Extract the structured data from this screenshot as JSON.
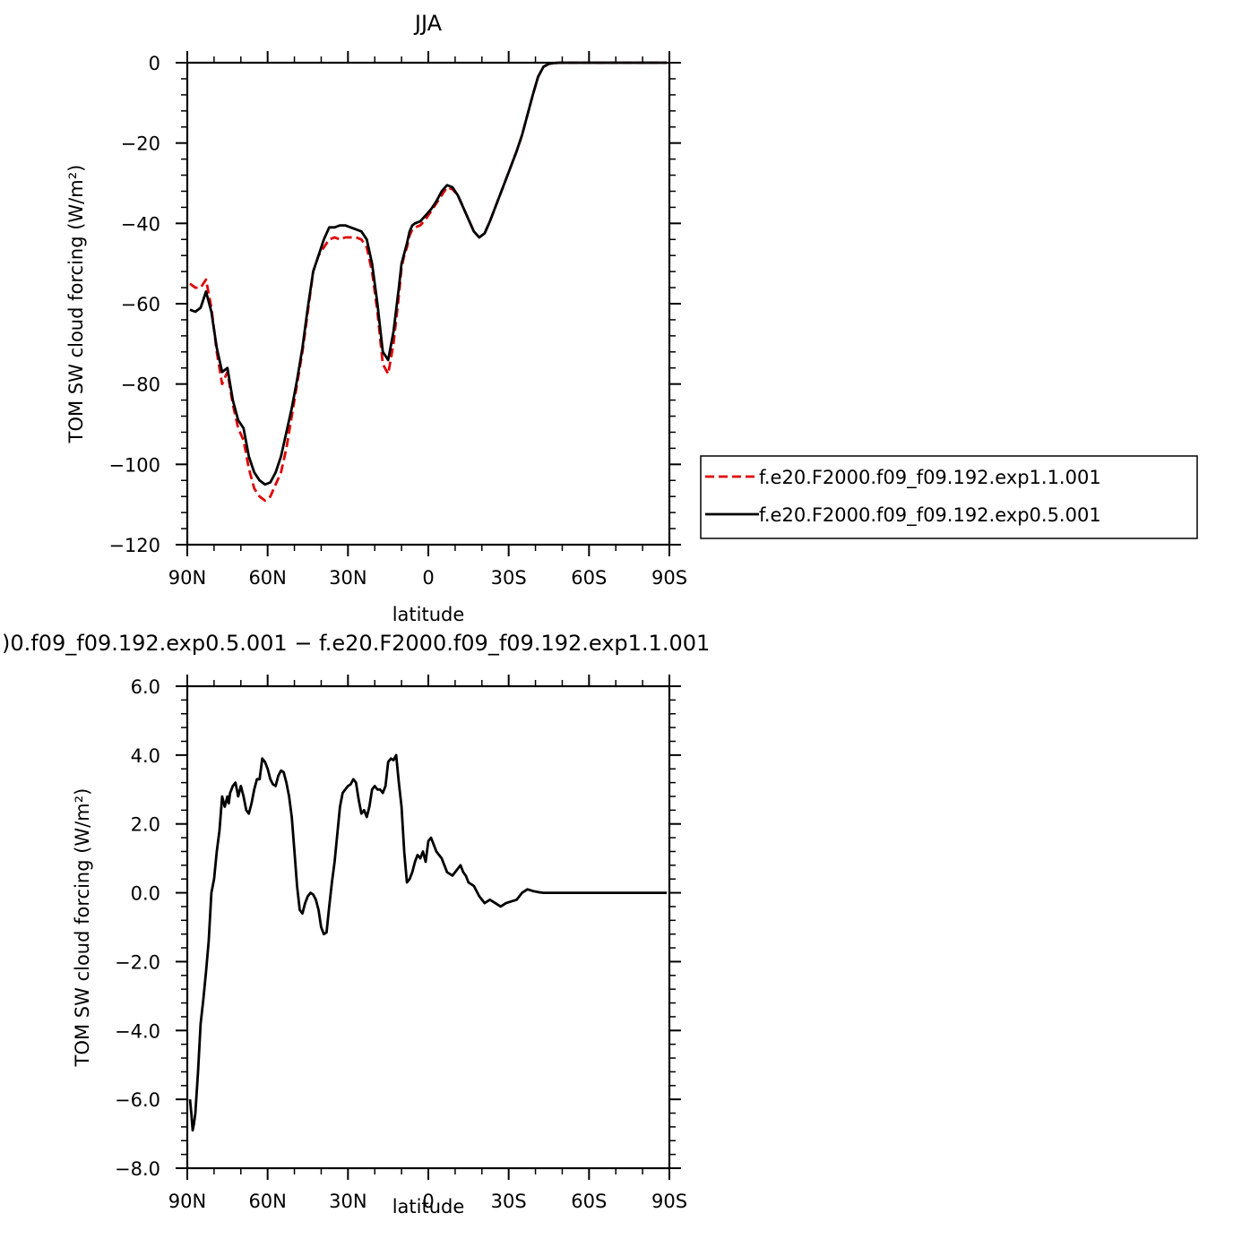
{
  "chart_data": [
    {
      "type": "line",
      "title": "JJA",
      "xlabel": "latitude",
      "ylabel": "TOM SW cloud forcing (W/m²)",
      "xlim": [
        90,
        -90
      ],
      "ylim": [
        -120,
        0
      ],
      "x_ticks": [
        90,
        60,
        30,
        0,
        -30,
        -60,
        -90
      ],
      "x_tick_labels": [
        "90N",
        "60N",
        "30N",
        "0",
        "30S",
        "60S",
        "90S"
      ],
      "y_ticks": [
        0,
        -20,
        -40,
        -60,
        -80,
        -100,
        -120
      ],
      "y_tick_labels": [
        "0",
        "−20",
        "−40",
        "−60",
        "−80",
        "−100",
        "−120"
      ],
      "legend_position": "right",
      "series": [
        {
          "name": "f.e20.F2000.f09_f09.192.exp1.1.001",
          "color": "#e00000",
          "dash": "dashed",
          "x": [
            89,
            87,
            85,
            83,
            81,
            79,
            77,
            75,
            74,
            73,
            71,
            69,
            67,
            65,
            63,
            61,
            59,
            57,
            55,
            53,
            51,
            49,
            47,
            45,
            43,
            41,
            39,
            37,
            35,
            33,
            31,
            29,
            27,
            25,
            23,
            21,
            19,
            17,
            15,
            13,
            11,
            10,
            9,
            8,
            7,
            6,
            5,
            3,
            1,
            -1,
            -3,
            -5,
            -7,
            -9,
            -11,
            -13,
            -15,
            -17,
            -19,
            -21,
            -23,
            -25,
            -27,
            -29,
            -31,
            -33,
            -35,
            -37,
            -39,
            -41,
            -43,
            -45,
            -47,
            -49,
            -51,
            -53,
            -55,
            -57,
            -59,
            -61,
            -63,
            -65,
            -67,
            -69,
            -71,
            -73,
            -75,
            -77,
            -79,
            -81,
            -83,
            -85,
            -87,
            -89
          ],
          "y": [
            -55,
            -56,
            -56,
            -54,
            -61,
            -72,
            -80,
            -77,
            -81,
            -85,
            -91,
            -94,
            -101,
            -106,
            -108,
            -109,
            -108,
            -105,
            -102,
            -96,
            -88,
            -80,
            -72,
            -62,
            -52,
            -48,
            -46,
            -44,
            -43.5,
            -44,
            -43.5,
            -43.5,
            -43.5,
            -44,
            -46,
            -52,
            -62,
            -75,
            -77.5,
            -70,
            -58,
            -51,
            -48,
            -46,
            -43,
            -41.5,
            -41,
            -40.5,
            -39,
            -37,
            -35,
            -33,
            -31,
            -31.5,
            -33,
            -36,
            -39,
            -42,
            -43.5,
            -42.5,
            -39.5,
            -36,
            -32.5,
            -29,
            -25.5,
            -22,
            -18,
            -13,
            -8,
            -3.5,
            -1,
            -0.3,
            -0.1,
            0,
            0,
            0,
            0,
            0,
            0,
            0,
            0,
            0,
            0,
            0,
            0,
            0,
            0,
            0,
            0,
            0,
            0,
            0,
            0,
            0
          ]
        },
        {
          "name": "f.e20.F2000.f09_f09.192.exp0.5.001",
          "color": "#000000",
          "dash": "solid",
          "x": [
            89,
            87,
            85,
            83,
            81,
            79,
            77,
            75,
            74,
            73,
            71,
            69,
            67,
            65,
            63,
            61,
            59,
            57,
            55,
            53,
            51,
            49,
            47,
            45,
            43,
            41,
            39,
            37,
            35,
            33,
            31,
            29,
            27,
            25,
            23,
            21,
            19,
            17,
            15,
            13,
            11,
            10,
            9,
            8,
            7,
            6,
            5,
            3,
            1,
            -1,
            -3,
            -5,
            -7,
            -9,
            -11,
            -13,
            -15,
            -17,
            -19,
            -21,
            -23,
            -25,
            -27,
            -29,
            -31,
            -33,
            -35,
            -37,
            -39,
            -41,
            -43,
            -45,
            -47,
            -49,
            -51,
            -53,
            -55,
            -57,
            -59,
            -61,
            -63,
            -65,
            -67,
            -69,
            -71,
            -73,
            -75,
            -77,
            -79,
            -81,
            -83,
            -85,
            -87,
            -89
          ],
          "y": [
            -61.5,
            -62,
            -61,
            -57,
            -62,
            -71,
            -77,
            -76,
            -80,
            -84,
            -89,
            -91,
            -98,
            -102,
            -104,
            -105,
            -104.5,
            -102,
            -98,
            -92,
            -86,
            -79,
            -71,
            -61,
            -52,
            -48,
            -44,
            -41,
            -41,
            -40.5,
            -40.5,
            -41,
            -41.5,
            -42,
            -44,
            -50,
            -60,
            -72,
            -74,
            -67,
            -56,
            -50,
            -47.5,
            -45,
            -42,
            -40.5,
            -40,
            -39.5,
            -38,
            -36.5,
            -34.5,
            -32,
            -30.5,
            -31,
            -33,
            -36,
            -39,
            -42,
            -43.5,
            -42.5,
            -39.5,
            -36,
            -32.5,
            -29,
            -25.5,
            -22,
            -18,
            -13,
            -8,
            -3.5,
            -1,
            -0.3,
            -0.1,
            0,
            0,
            0,
            0,
            0,
            0,
            0,
            0,
            0,
            0,
            0,
            0,
            0,
            0,
            0,
            0,
            0,
            0,
            0,
            0,
            0
          ]
        }
      ]
    },
    {
      "type": "line",
      "title": ")0.f09_f09.192.exp0.5.001 − f.e20.F2000.f09_f09.192.exp1.1.001",
      "xlabel": "latitude",
      "ylabel": "TOM SW cloud forcing (W/m²)",
      "xlim": [
        90,
        -90
      ],
      "ylim": [
        -8,
        6
      ],
      "x_ticks": [
        90,
        60,
        30,
        0,
        -30,
        -60,
        -90
      ],
      "x_tick_labels": [
        "90N",
        "60N",
        "30N",
        "0",
        "30S",
        "60S",
        "90S"
      ],
      "y_ticks": [
        6,
        4,
        2,
        0,
        -2,
        -4,
        -6,
        -8
      ],
      "y_tick_labels": [
        "6.0",
        "4.0",
        "2.0",
        "0.0",
        "−2.0",
        "−4.0",
        "−6.0",
        "−8.0"
      ],
      "series": [
        {
          "name": "",
          "color": "#000000",
          "dash": "solid",
          "x": [
            89,
            88.5,
            88,
            87.5,
            87,
            86,
            85,
            84,
            83,
            82,
            81,
            80,
            79,
            78,
            77,
            76,
            75,
            74.5,
            74,
            73.5,
            73,
            72,
            71,
            70,
            69,
            68,
            67,
            66,
            65,
            64,
            63,
            62,
            61,
            60,
            59,
            58,
            57,
            56,
            55,
            54,
            53,
            52,
            51,
            50,
            49,
            48,
            47,
            46,
            45,
            44,
            43,
            42,
            41,
            40,
            39,
            38,
            37,
            36,
            35,
            34,
            33,
            32,
            31,
            30,
            29,
            28,
            27,
            26,
            25,
            24,
            23,
            22,
            21,
            20,
            19,
            18,
            17,
            16,
            15,
            14,
            13,
            12,
            11,
            10,
            9,
            8,
            7,
            6,
            5,
            4,
            3,
            2,
            1,
            0,
            -1,
            -2,
            -3,
            -5,
            -7,
            -9,
            -11,
            -12,
            -13,
            -14,
            -15,
            -17,
            -19,
            -21,
            -23,
            -25,
            -27,
            -29,
            -31,
            -33,
            -35,
            -37,
            -39,
            -41,
            -43,
            -45,
            -47,
            -49,
            -51,
            -53,
            -55,
            -57,
            -59,
            -61,
            -63,
            -65,
            -67,
            -69,
            -71,
            -73,
            -75,
            -77,
            -79,
            -81,
            -83,
            -85,
            -87,
            -89
          ],
          "y": [
            -6.0,
            -6.4,
            -6.9,
            -6.7,
            -6.4,
            -5.2,
            -3.8,
            -3.1,
            -2.3,
            -1.4,
            0.0,
            0.4,
            1.2,
            1.8,
            2.8,
            2.5,
            2.8,
            2.6,
            2.9,
            3.0,
            3.1,
            3.2,
            2.8,
            3.1,
            2.8,
            2.4,
            2.3,
            2.6,
            3.0,
            3.3,
            3.3,
            3.9,
            3.8,
            3.6,
            3.3,
            3.15,
            3.1,
            3.4,
            3.55,
            3.5,
            3.2,
            2.8,
            2.2,
            1.2,
            0.2,
            -0.5,
            -0.6,
            -0.3,
            -0.1,
            0.0,
            -0.05,
            -0.2,
            -0.5,
            -1.0,
            -1.2,
            -1.15,
            -0.4,
            0.3,
            0.9,
            1.7,
            2.5,
            2.9,
            3.0,
            3.1,
            3.15,
            3.3,
            3.2,
            2.7,
            2.3,
            2.4,
            2.2,
            2.5,
            3.0,
            3.1,
            3.0,
            3.0,
            2.9,
            3.1,
            3.8,
            3.9,
            3.85,
            4.0,
            3.2,
            2.5,
            1.2,
            0.3,
            0.4,
            0.6,
            0.9,
            1.1,
            1.0,
            1.2,
            0.9,
            1.5,
            1.6,
            1.4,
            1.2,
            1.0,
            0.6,
            0.5,
            0.7,
            0.8,
            0.6,
            0.5,
            0.3,
            0.2,
            -0.1,
            -0.3,
            -0.2,
            -0.3,
            -0.4,
            -0.3,
            -0.25,
            -0.2,
            0.0,
            0.1,
            0.05,
            0.02,
            0.0,
            0.0,
            0.0,
            0.0,
            0.0,
            0.0,
            0.0,
            0.0,
            0.0,
            0.0,
            0.0,
            0.0,
            0.0,
            0.0,
            0.0,
            0.0,
            0.0,
            0.0,
            0.0,
            0.0,
            0.0,
            0.0,
            0.0,
            0.0
          ]
        }
      ]
    }
  ]
}
